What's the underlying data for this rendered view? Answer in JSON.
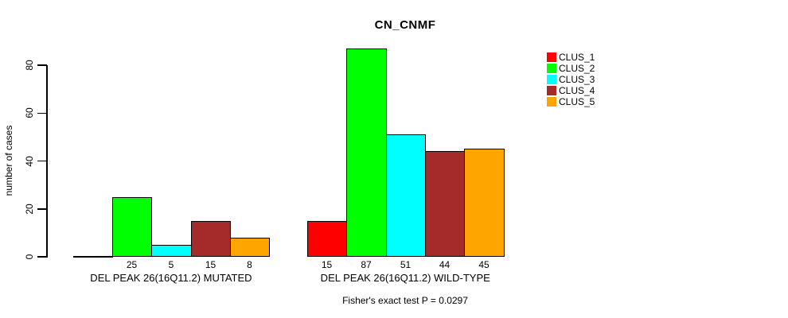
{
  "background_color": "#ffffff",
  "text_color": "#000000",
  "chart_data": {
    "type": "bar",
    "title": "CN_CNMF",
    "ylabel": "number of cases",
    "xlabel": "",
    "yticks": [
      0,
      20,
      40,
      60,
      80
    ],
    "ylim": [
      0,
      87
    ],
    "axis_drawn_range": [
      0,
      80
    ],
    "grid": "off",
    "legend_position": "right",
    "legend": [
      {
        "name": "CLUS_1",
        "color": "#FF0000"
      },
      {
        "name": "CLUS_2",
        "color": "#00FF00"
      },
      {
        "name": "CLUS_3",
        "color": "#00FFFF"
      },
      {
        "name": "CLUS_4",
        "color": "#A52A2A"
      },
      {
        "name": "CLUS_5",
        "color": "#FFA500"
      }
    ],
    "series_names": [
      "CLUS_1",
      "CLUS_2",
      "CLUS_3",
      "CLUS_4",
      "CLUS_5"
    ],
    "groups": [
      {
        "label": "DEL PEAK 26(16Q11.2) MUTATED",
        "values": [
          0,
          25,
          5,
          15,
          8
        ],
        "value_labels": [
          "",
          "25",
          "5",
          "15",
          "8"
        ]
      },
      {
        "label": "DEL PEAK 26(16Q11.2) WILD-TYPE",
        "values": [
          15,
          87,
          51,
          44,
          45
        ],
        "value_labels": [
          "15",
          "87",
          "51",
          "44",
          "45"
        ]
      }
    ],
    "footnote": "Fisher's exact test P = 0.0297"
  }
}
